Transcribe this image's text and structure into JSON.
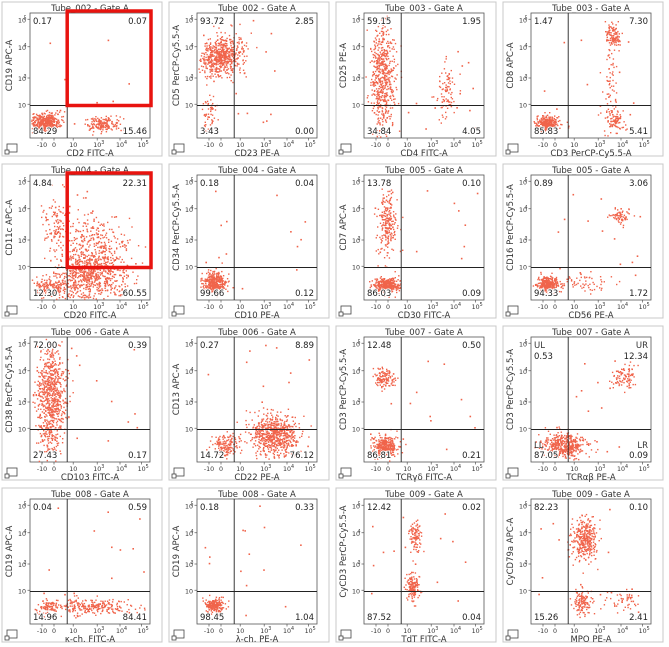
{
  "chart_data": [
    {
      "type": "scatter",
      "title": "Tube_002 - Gate A",
      "xlabel": "CD2 FITC-A",
      "ylabel": "CD19 APC-A",
      "quadrants": {
        "UL": "0.17",
        "UR": "0.07",
        "LL": "84.29",
        "LR": "15.46"
      },
      "clusters": [
        {
          "cx": 0.12,
          "cy": 0.13,
          "sx": 0.06,
          "sy": 0.035,
          "n": 420
        },
        {
          "cx": 0.6,
          "cy": 0.12,
          "sx": 0.07,
          "sy": 0.03,
          "n": 160
        }
      ],
      "highlight": true
    },
    {
      "type": "scatter",
      "title": "Tube_002 - Gate A",
      "xlabel": "CD23 PE-A",
      "ylabel": "CD5 PerCP-Cy5.5-A",
      "quadrants": {
        "UL": "93.72",
        "UR": "2.85",
        "LL": "3.43",
        "LR": "0.00"
      },
      "clusters": [
        {
          "cx": 0.17,
          "cy": 0.64,
          "sx": 0.08,
          "sy": 0.07,
          "n": 480
        },
        {
          "cx": 0.28,
          "cy": 0.72,
          "sx": 0.08,
          "sy": 0.08,
          "n": 120
        },
        {
          "cx": 0.1,
          "cy": 0.18,
          "sx": 0.03,
          "sy": 0.08,
          "n": 60
        }
      ]
    },
    {
      "type": "scatter",
      "title": "Tube_003 - Gate A",
      "xlabel": "CD4 FITC-A",
      "ylabel": "CD25 PE-A",
      "quadrants": {
        "UL": "59.15",
        "UR": "1.95",
        "LL": "34.84",
        "LR": "4.05"
      },
      "clusters": [
        {
          "cx": 0.15,
          "cy": 0.5,
          "sx": 0.05,
          "sy": 0.22,
          "n": 550
        },
        {
          "cx": 0.68,
          "cy": 0.38,
          "sx": 0.04,
          "sy": 0.12,
          "n": 90
        }
      ]
    },
    {
      "type": "scatter",
      "title": "Tube_003 - Gate A",
      "xlabel": "CD3 PerCP-Cy5.5-A",
      "ylabel": "CD8 APC-A",
      "quadrants": {
        "UL": "1.47",
        "UR": "7.30",
        "LL": "85.83",
        "LR": "5.41"
      },
      "clusters": [
        {
          "cx": 0.13,
          "cy": 0.12,
          "sx": 0.05,
          "sy": 0.03,
          "n": 300
        },
        {
          "cx": 0.68,
          "cy": 0.82,
          "sx": 0.03,
          "sy": 0.05,
          "n": 110
        },
        {
          "cx": 0.7,
          "cy": 0.14,
          "sx": 0.04,
          "sy": 0.04,
          "n": 90
        },
        {
          "cx": 0.66,
          "cy": 0.45,
          "sx": 0.03,
          "sy": 0.2,
          "n": 60
        }
      ]
    },
    {
      "type": "scatter",
      "title": "Tube_004 - Gate A",
      "xlabel": "CD20 FITC-A",
      "ylabel": "CD11c APC-A",
      "quadrants": {
        "UL": "4.84",
        "UR": "22.31",
        "LL": "12.30",
        "LR": "60.55"
      },
      "clusters": [
        {
          "cx": 0.5,
          "cy": 0.2,
          "sx": 0.14,
          "sy": 0.1,
          "n": 700
        },
        {
          "cx": 0.52,
          "cy": 0.45,
          "sx": 0.14,
          "sy": 0.12,
          "n": 260
        },
        {
          "cx": 0.16,
          "cy": 0.1,
          "sx": 0.07,
          "sy": 0.04,
          "n": 180
        },
        {
          "cx": 0.22,
          "cy": 0.62,
          "sx": 0.06,
          "sy": 0.12,
          "n": 110
        }
      ],
      "highlight": true
    },
    {
      "type": "scatter",
      "title": "Tube_004 - Gate A",
      "xlabel": "CD10 PE-A",
      "ylabel": "CD34 PerCP-Cy5.5-A",
      "quadrants": {
        "UL": "0.18",
        "UR": "0.04",
        "LL": "99.66",
        "LR": "0.12"
      },
      "clusters": [
        {
          "cx": 0.14,
          "cy": 0.14,
          "sx": 0.05,
          "sy": 0.04,
          "n": 380
        }
      ]
    },
    {
      "type": "scatter",
      "title": "Tube_005 - Gate A",
      "xlabel": "CD30 FITC-A",
      "ylabel": "CD7 APC-A",
      "quadrants": {
        "UL": "13.78",
        "UR": "0.10",
        "LL": "86.03",
        "LR": "0.09"
      },
      "clusters": [
        {
          "cx": 0.18,
          "cy": 0.12,
          "sx": 0.05,
          "sy": 0.03,
          "n": 380
        },
        {
          "cx": 0.19,
          "cy": 0.6,
          "sx": 0.04,
          "sy": 0.12,
          "n": 220
        }
      ]
    },
    {
      "type": "scatter",
      "title": "Tube_005 - Gate A",
      "xlabel": "CD56 PE-A",
      "ylabel": "CD16 PerCP-Cy5.5-A",
      "quadrants": {
        "UL": "0.89",
        "UR": "3.06",
        "LL": "94.33",
        "LR": "1.72"
      },
      "clusters": [
        {
          "cx": 0.14,
          "cy": 0.13,
          "sx": 0.04,
          "sy": 0.03,
          "n": 300
        },
        {
          "cx": 0.74,
          "cy": 0.68,
          "sx": 0.04,
          "sy": 0.03,
          "n": 70
        },
        {
          "cx": 0.45,
          "cy": 0.14,
          "sx": 0.14,
          "sy": 0.04,
          "n": 60
        }
      ]
    },
    {
      "type": "scatter",
      "title": "Tube_006 - Gate A",
      "xlabel": "CD103 FITC-A",
      "ylabel": "CD38 PerCP-Cy5.5-A",
      "quadrants": {
        "UL": "72.00",
        "UR": "0.39",
        "LL": "27.43",
        "LR": "0.17"
      },
      "clusters": [
        {
          "cx": 0.17,
          "cy": 0.5,
          "sx": 0.06,
          "sy": 0.22,
          "n": 750
        }
      ]
    },
    {
      "type": "scatter",
      "title": "Tube_006 - Gate A",
      "xlabel": "CD22 PE-A",
      "ylabel": "CD13 APC-A",
      "quadrants": {
        "UL": "0.27",
        "UR": "8.89",
        "LL": "14.72",
        "LR": "76.12"
      },
      "clusters": [
        {
          "cx": 0.65,
          "cy": 0.22,
          "sx": 0.1,
          "sy": 0.08,
          "n": 650
        },
        {
          "cx": 0.24,
          "cy": 0.14,
          "sx": 0.05,
          "sy": 0.04,
          "n": 150
        }
      ]
    },
    {
      "type": "scatter",
      "title": "Tube_007 - Gate A",
      "xlabel": "TCRγδ FITC-A",
      "ylabel": "CD3 PerCP-Cy5.5-A",
      "quadrants": {
        "UL": "12.48",
        "UR": "0.50",
        "LL": "86.81",
        "LR": "0.21"
      },
      "clusters": [
        {
          "cx": 0.17,
          "cy": 0.13,
          "sx": 0.05,
          "sy": 0.04,
          "n": 320
        },
        {
          "cx": 0.17,
          "cy": 0.67,
          "sx": 0.04,
          "sy": 0.04,
          "n": 120
        }
      ]
    },
    {
      "type": "scatter",
      "title": "Tube_007 - Gate A",
      "xlabel": "TCRαβ PE-A",
      "ylabel": "CD3 PerCP-Cy5.5-A",
      "quadrants": {
        "UL": "0.53",
        "UR": "12.34",
        "LL": "87.05",
        "LR": "0.09"
      },
      "quadrant_tags": {
        "UL": "UL",
        "UR": "UR",
        "LL": "LL",
        "LR": "LR"
      },
      "clusters": [
        {
          "cx": 0.28,
          "cy": 0.14,
          "sx": 0.09,
          "sy": 0.05,
          "n": 420
        },
        {
          "cx": 0.78,
          "cy": 0.68,
          "sx": 0.05,
          "sy": 0.05,
          "n": 90
        }
      ]
    },
    {
      "type": "scatter",
      "title": "Tube_008 - Gate A",
      "xlabel": "κ-ch. FITC-A",
      "ylabel": "CD19 APC-A",
      "quadrants": {
        "UL": "0.04",
        "UR": "0.59",
        "LL": "14.96",
        "LR": "84.41"
      },
      "clusters": [
        {
          "cx": 0.5,
          "cy": 0.14,
          "sx": 0.18,
          "sy": 0.03,
          "n": 260
        },
        {
          "cx": 0.15,
          "cy": 0.14,
          "sx": 0.04,
          "sy": 0.03,
          "n": 60
        }
      ]
    },
    {
      "type": "scatter",
      "title": "Tube_008 - Gate A",
      "xlabel": "λ-ch. PE-A",
      "ylabel": "CD19 APC-A",
      "quadrants": {
        "UL": "0.18",
        "UR": "0.33",
        "LL": "98.45",
        "LR": "1.04"
      },
      "clusters": [
        {
          "cx": 0.14,
          "cy": 0.15,
          "sx": 0.04,
          "sy": 0.03,
          "n": 200
        }
      ]
    },
    {
      "type": "scatter",
      "title": "Tube_009 - Gate A",
      "xlabel": "TdT FITC-A",
      "ylabel": "CyCD3 PerCP-Cy5.5-A",
      "quadrants": {
        "UL": "12.42",
        "UR": "0.02",
        "LL": "87.52",
        "LR": "0.04"
      },
      "clusters": [
        {
          "cx": 0.4,
          "cy": 0.3,
          "sx": 0.03,
          "sy": 0.05,
          "n": 150
        },
        {
          "cx": 0.42,
          "cy": 0.7,
          "sx": 0.03,
          "sy": 0.06,
          "n": 100
        }
      ]
    },
    {
      "type": "scatter",
      "title": "Tube_009 - Gate A",
      "xlabel": "MPO PE-A",
      "ylabel": "CyCD79a APC-A",
      "quadrants": {
        "UL": "82.23",
        "UR": "0.10",
        "LL": "15.26",
        "LR": "2.41"
      },
      "clusters": [
        {
          "cx": 0.44,
          "cy": 0.68,
          "sx": 0.05,
          "sy": 0.08,
          "n": 320
        },
        {
          "cx": 0.42,
          "cy": 0.18,
          "sx": 0.04,
          "sy": 0.05,
          "n": 120
        },
        {
          "cx": 0.76,
          "cy": 0.2,
          "sx": 0.07,
          "sy": 0.04,
          "n": 50
        }
      ]
    }
  ],
  "axis": {
    "x_ticks": [
      "-10",
      "0",
      "10",
      "10",
      "10",
      "10"
    ],
    "x_exps": [
      "",
      "",
      "",
      "3",
      "4",
      "5"
    ],
    "y_ticks": [
      "10",
      "10",
      "10",
      "10"
    ],
    "y_exps": [
      "5",
      "4",
      "3",
      ""
    ]
  },
  "colors": {
    "dot": "#f0644b",
    "line": "#222222",
    "frame": "#c8c8c8",
    "highlight": "#e8130f"
  }
}
